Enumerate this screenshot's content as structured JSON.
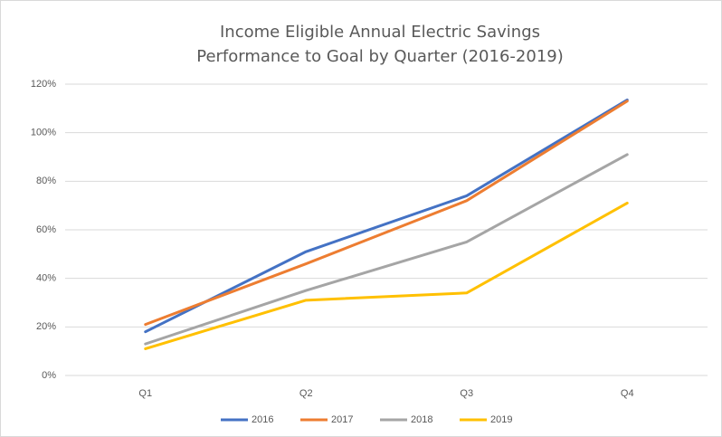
{
  "chart_data": {
    "type": "line",
    "title": [
      "Income Eligible Annual Electric Savings",
      "Performance to Goal by Quarter (2016-2019)"
    ],
    "categories": [
      "Q1",
      "Q2",
      "Q3",
      "Q4"
    ],
    "series": [
      {
        "name": "2016",
        "color": "#4472c4",
        "values": [
          18,
          51,
          74,
          113.5
        ]
      },
      {
        "name": "2017",
        "color": "#ed7d31",
        "values": [
          21,
          46,
          72,
          113
        ]
      },
      {
        "name": "2018",
        "color": "#a5a5a5",
        "values": [
          13,
          35,
          55,
          91
        ]
      },
      {
        "name": "2019",
        "color": "#ffc000",
        "values": [
          11,
          31,
          34,
          71
        ]
      }
    ],
    "ylim": [
      0,
      120
    ],
    "yticks": [
      {
        "value": 0,
        "label": "0%"
      },
      {
        "value": 20,
        "label": "20%"
      },
      {
        "value": 40,
        "label": "40%"
      },
      {
        "value": 60,
        "label": "60%"
      },
      {
        "value": 80,
        "label": "80%"
      },
      {
        "value": 100,
        "label": "100%"
      },
      {
        "value": 120,
        "label": "120%"
      }
    ],
    "grid": true,
    "legend": "bottom"
  }
}
